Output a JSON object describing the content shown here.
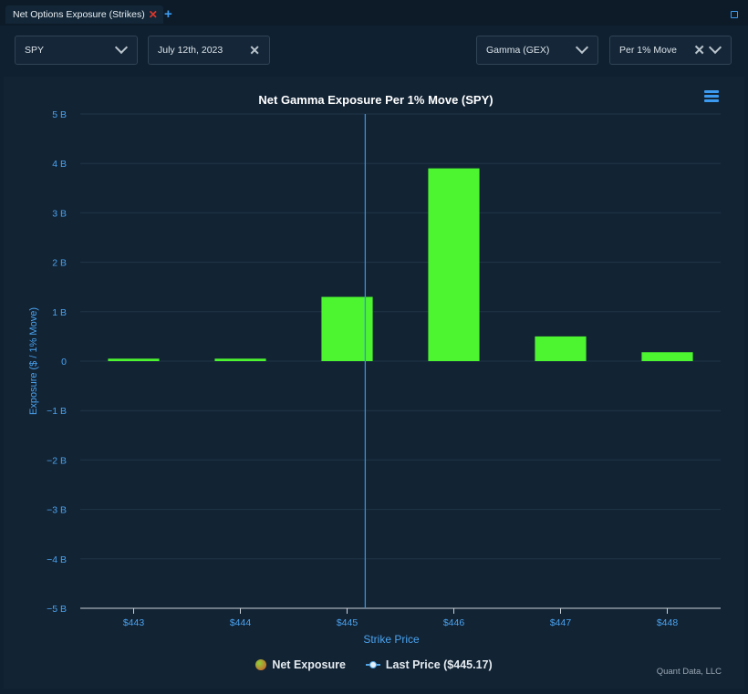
{
  "tab": {
    "title": "Net Options Exposure (Strikes)"
  },
  "controls": {
    "symbol": "SPY",
    "date": "July 12th, 2023",
    "greek": "Gamma (GEX)",
    "move": "Per 1% Move"
  },
  "colors": {
    "bar": "#4cf52f",
    "last_price_line": "#3a8fd8",
    "axis_text": "#4aa3ef",
    "grid": "#1f3446"
  },
  "icons": {
    "tab_close": "close-icon",
    "add_tab": "plus-icon",
    "expand": "expand-icon",
    "chart_menu": "hamburger-menu-icon"
  },
  "legend": {
    "series_label": "Net Exposure",
    "last_price_label": "Last Price ($445.17)"
  },
  "credit": "Quant Data, LLC",
  "chart_data": {
    "type": "bar",
    "title": "Net Gamma Exposure Per 1% Move (SPY)",
    "xlabel": "Strike Price",
    "ylabel": "Exposure ($ / 1% Move)",
    "categories": [
      "$443",
      "$444",
      "$445",
      "$446",
      "$447",
      "$448"
    ],
    "series": [
      {
        "name": "Net Exposure",
        "values": [
          0.05,
          0.05,
          1.3,
          3.9,
          0.5,
          0.18
        ]
      }
    ],
    "ylim": [
      -5,
      5
    ],
    "yticks": [
      5,
      4,
      3,
      2,
      1,
      0,
      -1,
      -2,
      -3,
      -4,
      -5
    ],
    "ytick_labels": [
      "5 B",
      "4 B",
      "3 B",
      "2 B",
      "1 B",
      "0",
      "−1 B",
      "−2 B",
      "−3 B",
      "−4 B",
      "−5 B"
    ],
    "y_unit": "B",
    "last_price": 445.17,
    "grid": true,
    "legend_position": "bottom"
  }
}
